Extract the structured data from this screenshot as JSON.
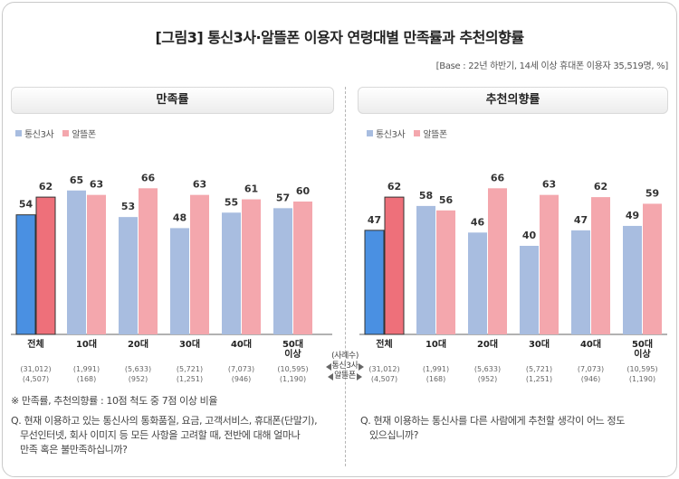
{
  "title": "[그림3] 통신3사·알뜰폰 이용자 연령대별 만족률과 추천의향률",
  "base_note": "[Base : 22년 하반기, 14세 이상 휴대폰 이용자 35,519명, %]",
  "colors": {
    "telecom_light": "#a8bde0",
    "mvno_light": "#f4a7ad",
    "telecom_total": "#4a90e2",
    "mvno_total": "#ee707a"
  },
  "legend": {
    "telecom": "통신3사",
    "mvno": "알뜰폰"
  },
  "middle_label": {
    "header": "(사례수)",
    "telecom": "통신3사",
    "mvno": "알뜰폰"
  },
  "footnote": "※ 만족률, 추천의향률 : 10점 척도 중 7점 이상 비율",
  "question_left": {
    "line1": "Q. 현재 이용하고 있는 통신사의 통화품질, 요금, 고객서비스, 휴대폰(단말기),",
    "line2": "무선인터넷, 회사 이미지 등 모든 사항을 고려할 때, 전반에 대해 얼마나",
    "line3": "만족 혹은 불만족하십니까?"
  },
  "question_right": {
    "line1": "Q. 현재 이용하는 통신사를 다른 사람에게 추천할 생각이 어느 정도",
    "line2": "있으십니까?"
  },
  "chart_data": [
    {
      "type": "bar",
      "title": "만족률",
      "categories": [
        "전체",
        "10대",
        "20대",
        "30대",
        "40대",
        "50대 이상"
      ],
      "sample_sizes_telecom": [
        "(31,012)",
        "(1,991)",
        "(5,633)",
        "(5,721)",
        "(7,073)",
        "(10,595)"
      ],
      "sample_sizes_mvno": [
        "(4,507)",
        "(168)",
        "(952)",
        "(1,251)",
        "(946)",
        "(1,190)"
      ],
      "series": [
        {
          "name": "통신3사",
          "values": [
            54,
            65,
            53,
            48,
            55,
            57
          ]
        },
        {
          "name": "알뜰폰",
          "values": [
            62,
            63,
            66,
            63,
            61,
            60
          ]
        }
      ],
      "ylim": [
        0,
        100
      ],
      "grid": false,
      "legend_position": "top-left"
    },
    {
      "type": "bar",
      "title": "추천의향률",
      "categories": [
        "전체",
        "10대",
        "20대",
        "30대",
        "40대",
        "50대 이상"
      ],
      "sample_sizes_telecom": [
        "(31,012)",
        "(1,991)",
        "(5,633)",
        "(5,721)",
        "(7,073)",
        "(10,595)"
      ],
      "sample_sizes_mvno": [
        "(4,507)",
        "(168)",
        "(952)",
        "(1,251)",
        "(946)",
        "(1,190)"
      ],
      "series": [
        {
          "name": "통신3사",
          "values": [
            47,
            58,
            46,
            40,
            47,
            49
          ]
        },
        {
          "name": "알뜰폰",
          "values": [
            62,
            56,
            66,
            63,
            62,
            59
          ]
        }
      ],
      "ylim": [
        0,
        100
      ],
      "grid": false,
      "legend_position": "top-left"
    }
  ]
}
